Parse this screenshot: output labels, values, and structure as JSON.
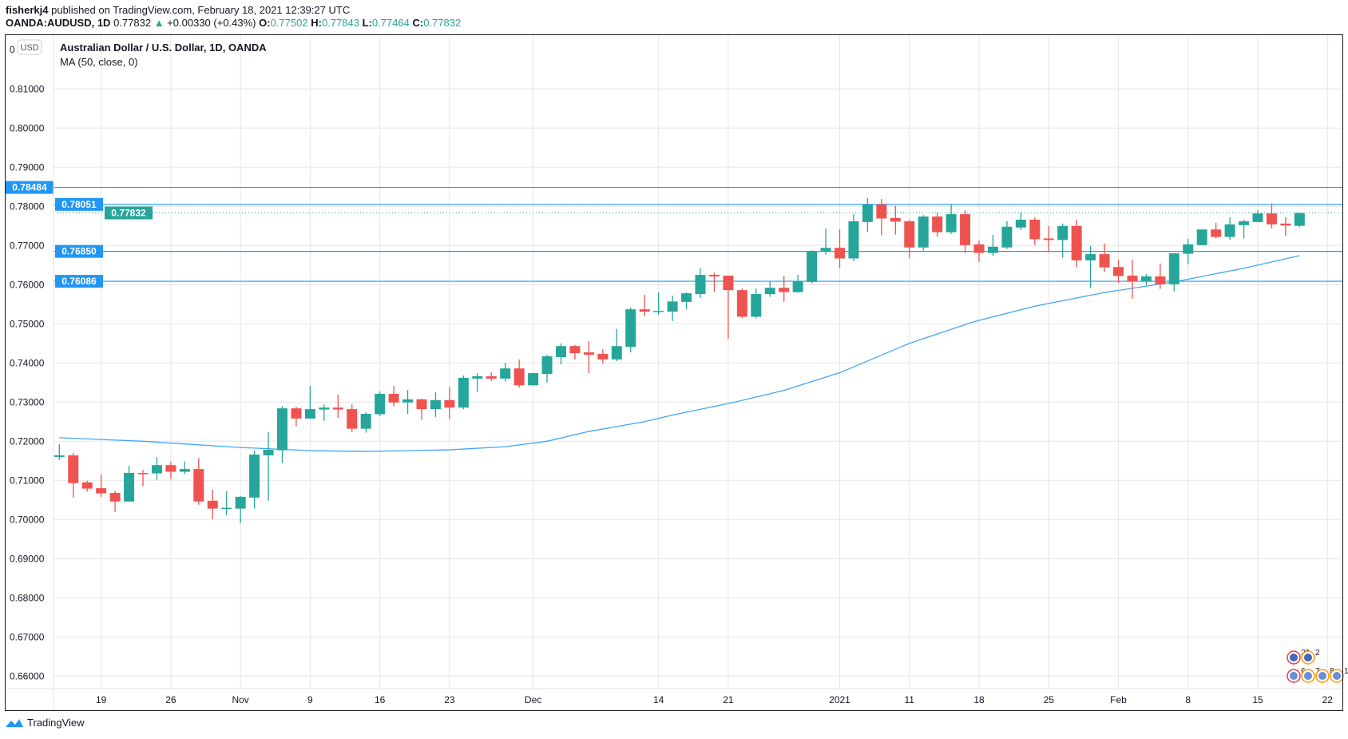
{
  "header": {
    "author": "fisherkj4",
    "published": "published on TradingView.com, February 18, 2021 12:39:27 UTC",
    "symbol": "OANDA:AUDUSD, 1D",
    "last": "0.77832",
    "change": "+0.00330 (+0.43%)",
    "o_label": "O:",
    "o": "0.77502",
    "h_label": "H:",
    "h": "0.77843",
    "l_label": "L:",
    "l": "0.77464",
    "c_label": "C:",
    "c": "0.77832"
  },
  "legend": {
    "title": "Australian Dollar / U.S. Dollar, 1D, OANDA",
    "indicator": "MA (50, close, 0)",
    "currency_badge": "USD"
  },
  "footer": {
    "brand": "TradingView"
  },
  "colors": {
    "up": "#26a69a",
    "down": "#ef5350",
    "line": "#2196f3",
    "ma": "#42a5f5",
    "grid": "#e6e6e6"
  },
  "chart_data": {
    "type": "candlestick",
    "title": "Australian Dollar / U.S. Dollar, 1D, OANDA",
    "ylim": [
      0.655,
      0.822
    ],
    "y_ticks": [
      "0.81000",
      "0.80000",
      "0.79000",
      "0.78000",
      "0.77000",
      "0.76000",
      "0.75000",
      "0.74000",
      "0.73000",
      "0.72000",
      "0.71000",
      "0.70000",
      "0.69000",
      "0.68000",
      "0.67000",
      "0.66000"
    ],
    "y_tick_values": [
      0.81,
      0.8,
      0.79,
      0.78,
      0.77,
      0.76,
      0.75,
      0.74,
      0.73,
      0.72,
      0.71,
      0.7,
      0.69,
      0.68,
      0.67,
      0.66
    ],
    "x_ticks": [
      {
        "label": "19",
        "index": 3
      },
      {
        "label": "26",
        "index": 8
      },
      {
        "label": "Nov",
        "index": 13
      },
      {
        "label": "9",
        "index": 18
      },
      {
        "label": "16",
        "index": 23
      },
      {
        "label": "23",
        "index": 28
      },
      {
        "label": "Dec",
        "index": 34
      },
      {
        "label": "14",
        "index": 43
      },
      {
        "label": "21",
        "index": 48
      },
      {
        "label": "2021",
        "index": 56
      },
      {
        "label": "11",
        "index": 61
      },
      {
        "label": "18",
        "index": 66
      },
      {
        "label": "25",
        "index": 71
      },
      {
        "label": "Feb",
        "index": 76
      },
      {
        "label": "8",
        "index": 81
      },
      {
        "label": "15",
        "index": 86
      },
      {
        "label": "22",
        "index": 91
      }
    ],
    "ohlc": [
      [
        0.716,
        0.7192,
        0.7152,
        0.7164
      ],
      [
        0.7164,
        0.717,
        0.7056,
        0.7093
      ],
      [
        0.7095,
        0.7099,
        0.7071,
        0.7079
      ],
      [
        0.708,
        0.7115,
        0.7058,
        0.7067
      ],
      [
        0.7068,
        0.7074,
        0.7019,
        0.7046
      ],
      [
        0.7046,
        0.7137,
        0.7046,
        0.7119
      ],
      [
        0.7119,
        0.7127,
        0.7085,
        0.7117
      ],
      [
        0.7118,
        0.716,
        0.7101,
        0.7139
      ],
      [
        0.7139,
        0.7148,
        0.7103,
        0.7122
      ],
      [
        0.7122,
        0.7148,
        0.7116,
        0.7129
      ],
      [
        0.7129,
        0.7157,
        0.7038,
        0.7046
      ],
      [
        0.7048,
        0.7076,
        0.7001,
        0.7028
      ],
      [
        0.7027,
        0.7072,
        0.7011,
        0.703
      ],
      [
        0.7028,
        0.706,
        0.6991,
        0.7058
      ],
      [
        0.7056,
        0.7176,
        0.7028,
        0.7166
      ],
      [
        0.7164,
        0.7223,
        0.7048,
        0.7178
      ],
      [
        0.7177,
        0.729,
        0.7144,
        0.7284
      ],
      [
        0.7284,
        0.7288,
        0.7238,
        0.7258
      ],
      [
        0.7258,
        0.7341,
        0.7258,
        0.7282
      ],
      [
        0.7281,
        0.7294,
        0.7252,
        0.7286
      ],
      [
        0.7286,
        0.7319,
        0.726,
        0.7281
      ],
      [
        0.7282,
        0.7294,
        0.7224,
        0.7232
      ],
      [
        0.7232,
        0.7274,
        0.7222,
        0.727
      ],
      [
        0.7269,
        0.7327,
        0.7264,
        0.7321
      ],
      [
        0.7321,
        0.7341,
        0.7289,
        0.7299
      ],
      [
        0.7299,
        0.7331,
        0.727,
        0.7307
      ],
      [
        0.7307,
        0.7309,
        0.7255,
        0.7282
      ],
      [
        0.7282,
        0.7325,
        0.7262,
        0.7305
      ],
      [
        0.7305,
        0.7339,
        0.7256,
        0.7286
      ],
      [
        0.7286,
        0.7368,
        0.7282,
        0.7362
      ],
      [
        0.736,
        0.7374,
        0.7325,
        0.7366
      ],
      [
        0.7366,
        0.7376,
        0.7354,
        0.736
      ],
      [
        0.736,
        0.74,
        0.7352,
        0.7386
      ],
      [
        0.7386,
        0.7409,
        0.7337,
        0.7343
      ],
      [
        0.7343,
        0.7374,
        0.7341,
        0.7374
      ],
      [
        0.7372,
        0.7421,
        0.735,
        0.7417
      ],
      [
        0.7415,
        0.745,
        0.7396,
        0.7443
      ],
      [
        0.7443,
        0.7446,
        0.7409,
        0.7425
      ],
      [
        0.7427,
        0.7456,
        0.7374,
        0.7421
      ],
      [
        0.7423,
        0.7435,
        0.7399,
        0.7409
      ],
      [
        0.7409,
        0.7487,
        0.7405,
        0.7443
      ],
      [
        0.7441,
        0.7542,
        0.7427,
        0.7537
      ],
      [
        0.7537,
        0.7574,
        0.7519,
        0.7531
      ],
      [
        0.7531,
        0.758,
        0.7523,
        0.7533
      ],
      [
        0.7531,
        0.7572,
        0.7507,
        0.7557
      ],
      [
        0.7556,
        0.758,
        0.7537,
        0.7578
      ],
      [
        0.7576,
        0.7642,
        0.7566,
        0.7625
      ],
      [
        0.7625,
        0.7631,
        0.7582,
        0.7621
      ],
      [
        0.7623,
        0.7623,
        0.7462,
        0.7586
      ],
      [
        0.7586,
        0.759,
        0.7514,
        0.7518
      ],
      [
        0.7518,
        0.759,
        0.7514,
        0.7576
      ],
      [
        0.7576,
        0.7609,
        0.7569,
        0.7592
      ],
      [
        0.7592,
        0.7623,
        0.7556,
        0.7581
      ],
      [
        0.7581,
        0.7625,
        0.7579,
        0.7609
      ],
      [
        0.7607,
        0.7688,
        0.7603,
        0.7686
      ],
      [
        0.7686,
        0.7743,
        0.7677,
        0.7694
      ],
      [
        0.7694,
        0.7741,
        0.7642,
        0.7667
      ],
      [
        0.7667,
        0.778,
        0.766,
        0.7762
      ],
      [
        0.776,
        0.7821,
        0.7734,
        0.7805
      ],
      [
        0.7805,
        0.7819,
        0.7726,
        0.7769
      ],
      [
        0.777,
        0.7801,
        0.7728,
        0.7761
      ],
      [
        0.7762,
        0.7766,
        0.7667,
        0.7695
      ],
      [
        0.7695,
        0.7778,
        0.7687,
        0.7774
      ],
      [
        0.7774,
        0.7784,
        0.7722,
        0.7734
      ],
      [
        0.7734,
        0.7805,
        0.773,
        0.778
      ],
      [
        0.778,
        0.779,
        0.7681,
        0.7701
      ],
      [
        0.7703,
        0.7713,
        0.7658,
        0.7681
      ],
      [
        0.7681,
        0.7727,
        0.7673,
        0.7697
      ],
      [
        0.7695,
        0.7762,
        0.7691,
        0.7748
      ],
      [
        0.7746,
        0.7784,
        0.774,
        0.7766
      ],
      [
        0.7766,
        0.7772,
        0.7701,
        0.7716
      ],
      [
        0.7718,
        0.775,
        0.7683,
        0.7714
      ],
      [
        0.7714,
        0.7756,
        0.7669,
        0.775
      ],
      [
        0.775,
        0.7766,
        0.7644,
        0.7662
      ],
      [
        0.7662,
        0.7699,
        0.7591,
        0.7678
      ],
      [
        0.7678,
        0.7705,
        0.7632,
        0.7644
      ],
      [
        0.7645,
        0.7664,
        0.7605,
        0.7622
      ],
      [
        0.7623,
        0.7664,
        0.7564,
        0.7609
      ],
      [
        0.7609,
        0.7627,
        0.7599,
        0.7621
      ],
      [
        0.7621,
        0.7654,
        0.7589,
        0.7601
      ],
      [
        0.7601,
        0.768,
        0.7583,
        0.768
      ],
      [
        0.7679,
        0.7717,
        0.7652,
        0.7703
      ],
      [
        0.7701,
        0.7741,
        0.7701,
        0.7741
      ],
      [
        0.7741,
        0.7758,
        0.7718,
        0.7722
      ],
      [
        0.7722,
        0.7772,
        0.7714,
        0.7754
      ],
      [
        0.7752,
        0.7766,
        0.7718,
        0.7762
      ],
      [
        0.776,
        0.779,
        0.776,
        0.7782
      ],
      [
        0.7782,
        0.7807,
        0.7744,
        0.7754
      ],
      [
        0.7756,
        0.7772,
        0.7724,
        0.7751
      ],
      [
        0.77502,
        0.77843,
        0.77464,
        0.77832
      ]
    ],
    "ma50": [
      [
        0,
        0.7209
      ],
      [
        6,
        0.72
      ],
      [
        13,
        0.7184
      ],
      [
        18,
        0.7176
      ],
      [
        22,
        0.7174
      ],
      [
        28,
        0.7178
      ],
      [
        32,
        0.7186
      ],
      [
        35,
        0.72
      ],
      [
        38,
        0.7225
      ],
      [
        42,
        0.725
      ],
      [
        44,
        0.7267
      ],
      [
        48.5,
        0.73
      ],
      [
        52,
        0.733
      ],
      [
        56,
        0.7375
      ],
      [
        61,
        0.745
      ],
      [
        65.6,
        0.7505
      ],
      [
        70,
        0.7545
      ],
      [
        75,
        0.758
      ],
      [
        80,
        0.7607
      ],
      [
        85,
        0.7642
      ],
      [
        89,
        0.7674
      ]
    ],
    "horizontal_levels": [
      {
        "label": "0.78484",
        "value": 0.78484
      },
      {
        "label": "0.78051",
        "value": 0.78051
      },
      {
        "label": "0.76850",
        "value": 0.7685
      },
      {
        "label": "0.76086",
        "value": 0.76086
      }
    ],
    "last_price": {
      "label": "0.77832",
      "value": 0.77832
    },
    "events": {
      "row1": [
        "23",
        "2"
      ],
      "row2": [
        "6",
        "7",
        "8",
        "1"
      ]
    }
  }
}
